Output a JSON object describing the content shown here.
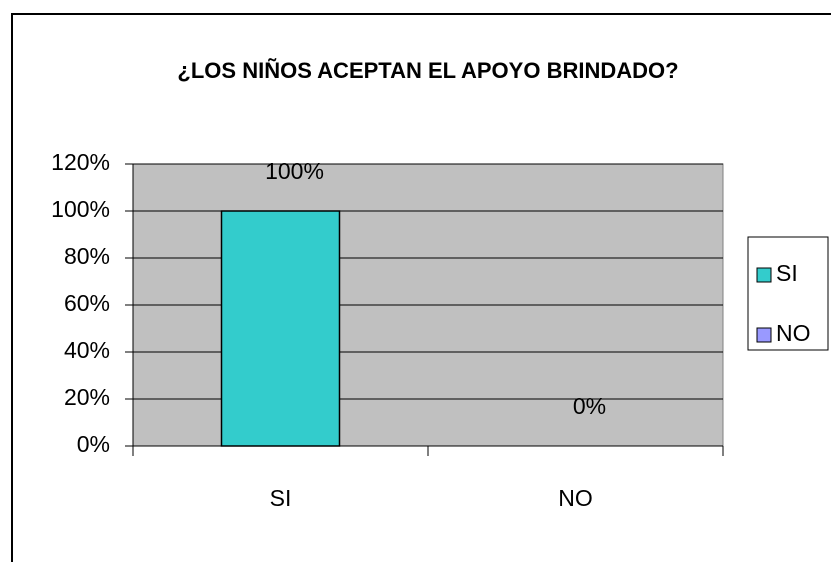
{
  "chart_data": {
    "type": "bar",
    "title": "¿LOS NIÑOS ACEPTAN EL APOYO BRINDADO?",
    "categories": [
      "SI",
      "NO"
    ],
    "values": [
      100,
      0
    ],
    "value_labels": [
      "100%",
      "0%"
    ],
    "colors": [
      "#33cccc",
      "#9999ff"
    ],
    "ylim": [
      0,
      120
    ],
    "yticks": [
      {
        "value": 0,
        "label": "0%"
      },
      {
        "value": 20,
        "label": "20%"
      },
      {
        "value": 40,
        "label": "40%"
      },
      {
        "value": 60,
        "label": "60%"
      },
      {
        "value": 80,
        "label": "80%"
      },
      {
        "value": 100,
        "label": "100%"
      },
      {
        "value": 120,
        "label": "120%"
      }
    ],
    "grid": true,
    "legend": "right"
  }
}
